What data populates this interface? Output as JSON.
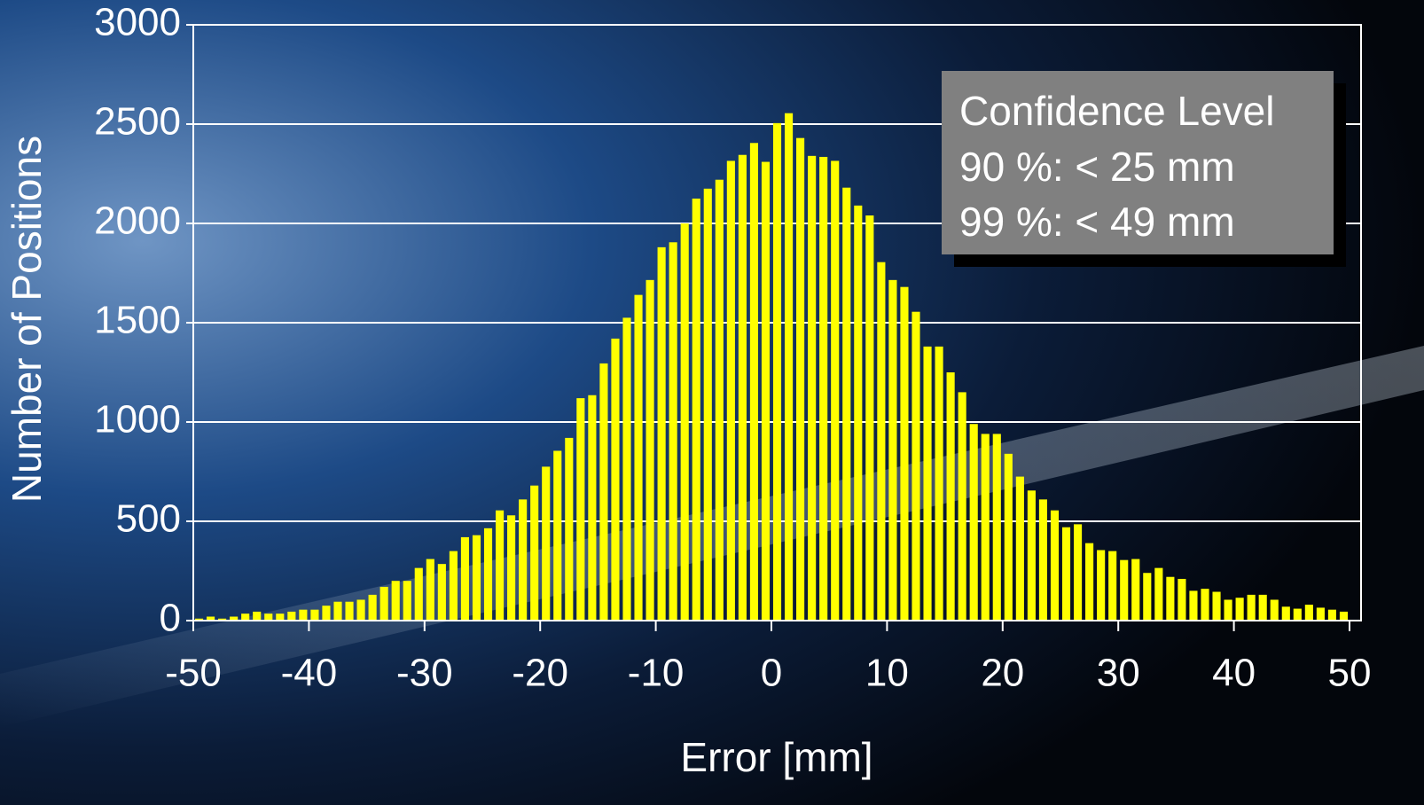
{
  "chart_data": {
    "type": "histogram",
    "x_label": "Error [mm]",
    "y_label": "Number of Positions",
    "annotation": [
      "Confidence Level",
      "90 %: < 25 mm",
      "99 %: < 49 mm"
    ],
    "color": "#ffff00",
    "grid": true,
    "bins": [
      -50,
      -49,
      -48,
      -47,
      -46,
      -45,
      -44,
      -43,
      -42,
      -41,
      -40,
      -39,
      -38,
      -37,
      -36,
      -35,
      -34,
      -33,
      -32,
      -31,
      -30,
      -29,
      -28,
      -27,
      -26,
      -25,
      -24,
      -23,
      -22,
      -21,
      -20,
      -19,
      -18,
      -17,
      -16,
      -15,
      -14,
      -13,
      -12,
      -11,
      -10,
      -9,
      -8,
      -7,
      -6,
      -5,
      -4,
      -3,
      -2,
      -1,
      0,
      1,
      2,
      3,
      4,
      5,
      6,
      7,
      8,
      9,
      10,
      11,
      12,
      13,
      14,
      15,
      16,
      17,
      18,
      19,
      20,
      21,
      22,
      23,
      24,
      25,
      26,
      27,
      28,
      29,
      30,
      31,
      32,
      33,
      34,
      35,
      36,
      37,
      38,
      39,
      40,
      41,
      42,
      43,
      44,
      45,
      46,
      47,
      48,
      49,
      50
    ],
    "values": [
      10,
      20,
      10,
      20,
      35,
      45,
      35,
      35,
      45,
      55,
      55,
      75,
      95,
      95,
      105,
      130,
      170,
      200,
      200,
      265,
      310,
      285,
      350,
      420,
      430,
      465,
      555,
      530,
      610,
      680,
      775,
      855,
      920,
      1120,
      1135,
      1295,
      1420,
      1525,
      1640,
      1715,
      1880,
      1905,
      2000,
      2125,
      2175,
      2220,
      2315,
      2345,
      2405,
      2310,
      2505,
      2555,
      2430,
      2340,
      2335,
      2315,
      2180,
      2090,
      2040,
      1805,
      1715,
      1680,
      1555,
      1380,
      1380,
      1250,
      1150,
      990,
      940,
      940,
      840,
      725,
      655,
      610,
      555,
      470,
      485,
      390,
      355,
      350,
      305,
      310,
      240,
      265,
      220,
      210,
      150,
      160,
      145,
      105,
      115,
      130,
      130,
      105,
      70,
      60,
      80,
      65,
      55,
      45
    ],
    "xlim": [
      -50,
      50
    ],
    "ylim": [
      0,
      3000
    ],
    "xticks": [
      -50,
      -40,
      -30,
      -20,
      -10,
      0,
      10,
      20,
      30,
      40,
      50
    ],
    "yticks": [
      0,
      500,
      1000,
      1500,
      2000,
      2500,
      3000
    ]
  }
}
